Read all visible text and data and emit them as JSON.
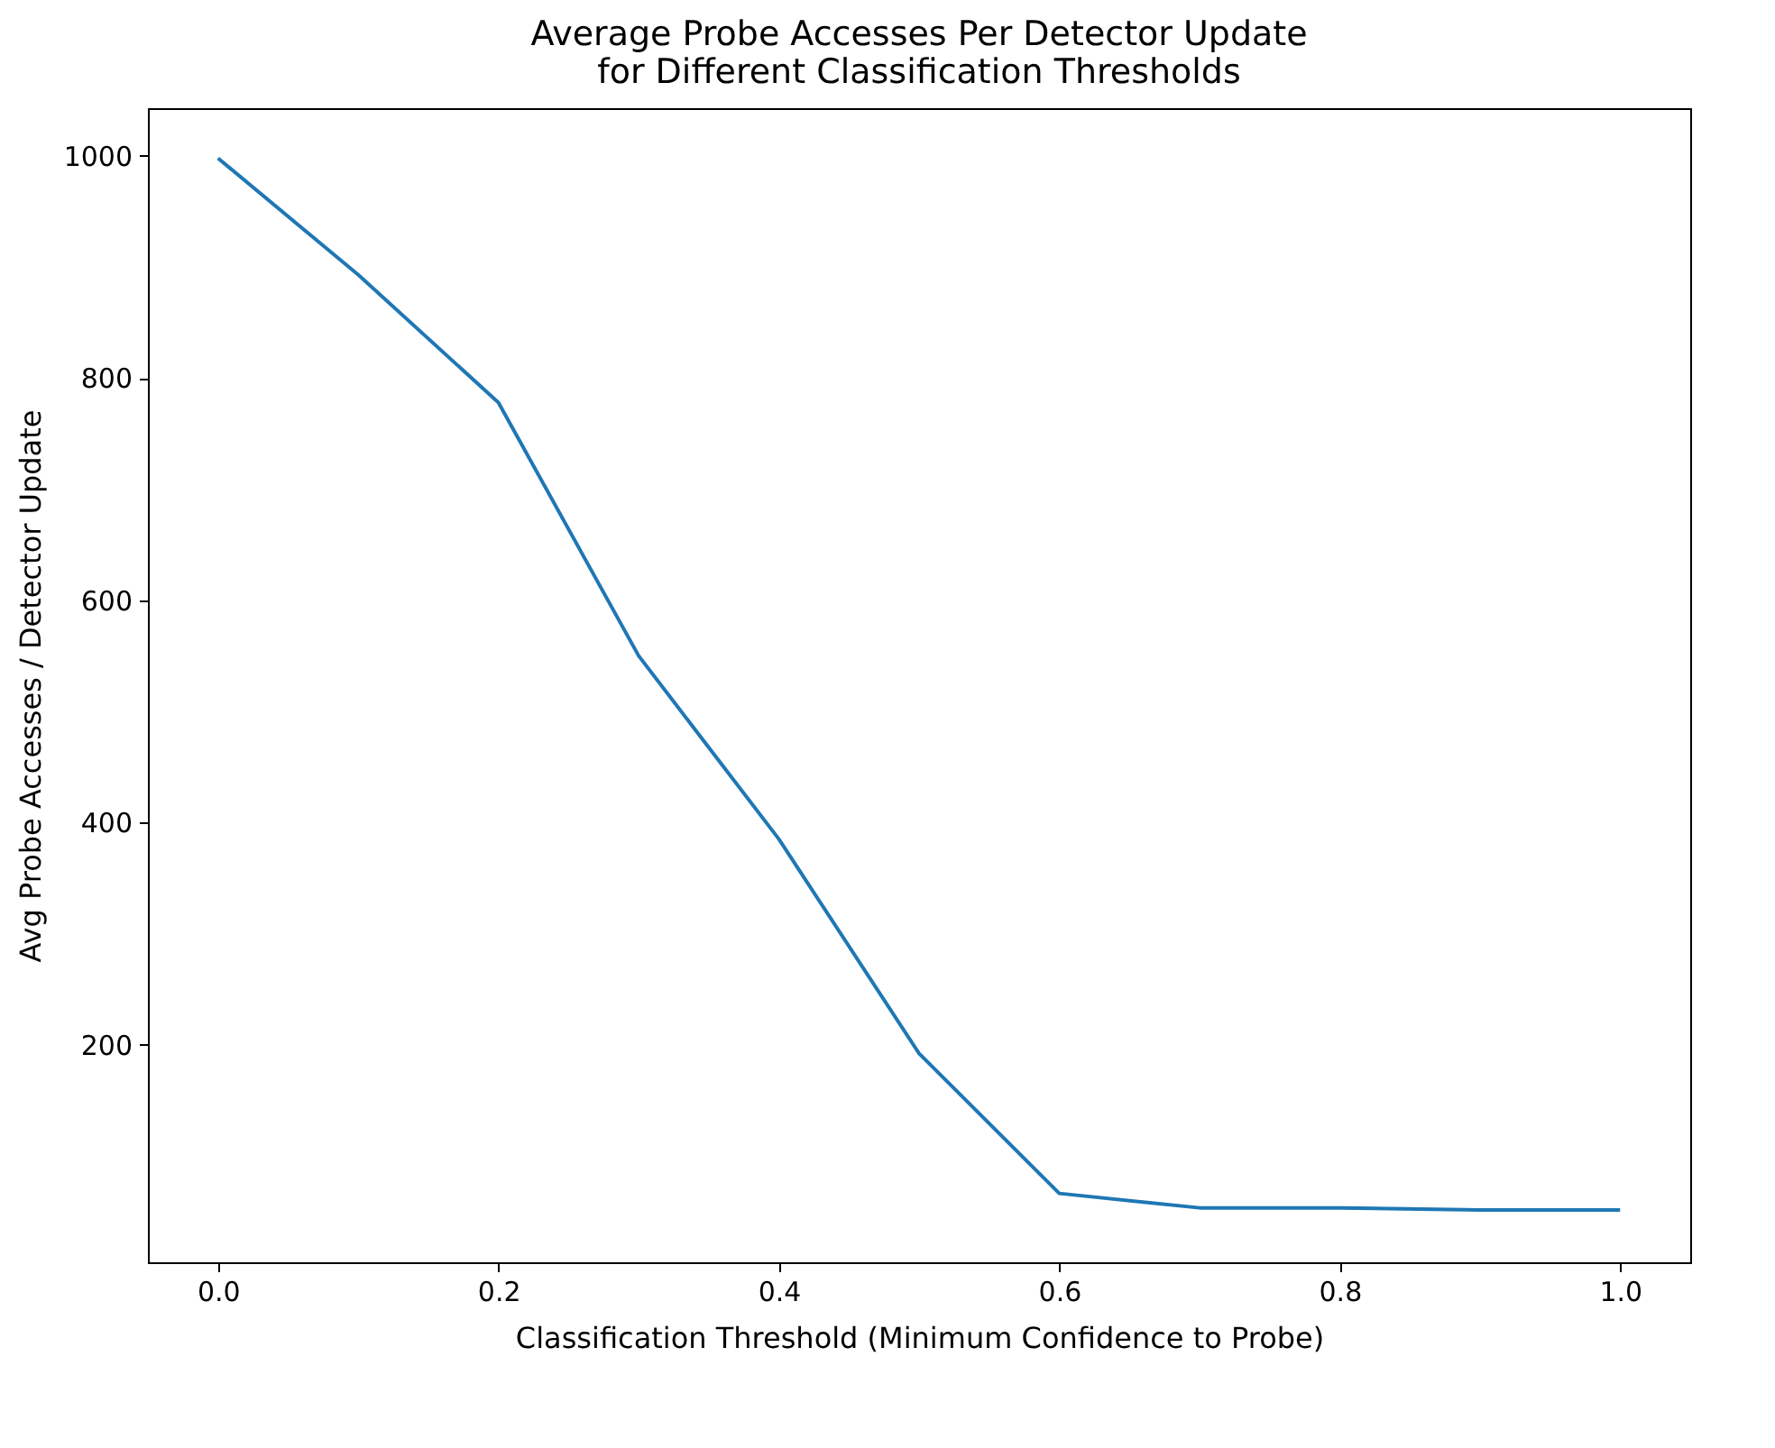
{
  "chart_data": {
    "type": "line",
    "title": "Average Probe Accesses Per Detector Update\nfor Different Classification  Thresholds",
    "xlabel": "Classification Threshold (Minimum Confidence to Probe)",
    "ylabel": "Avg Probe Accesses / Detector Update",
    "x": [
      0.0,
      0.1,
      0.2,
      0.3,
      0.4,
      0.5,
      0.6,
      0.7,
      0.8,
      0.9,
      1.0
    ],
    "series": [
      {
        "color": "#1f77b4",
        "values": [
          998,
          893,
          778,
          550,
          385,
          192,
          66,
          53,
          53,
          51,
          51
        ]
      }
    ],
    "xlim": [
      -0.05,
      1.05
    ],
    "xticks": [
      {
        "value": 0,
        "label": "0.0"
      },
      0.2,
      0.4,
      0.6,
      0.8,
      {
        "value": 1,
        "label": "1.0"
      }
    ],
    "ylim": [
      4,
      1043
    ],
    "yticks": [
      200,
      400,
      600,
      800,
      1000
    ],
    "grid": false
  }
}
